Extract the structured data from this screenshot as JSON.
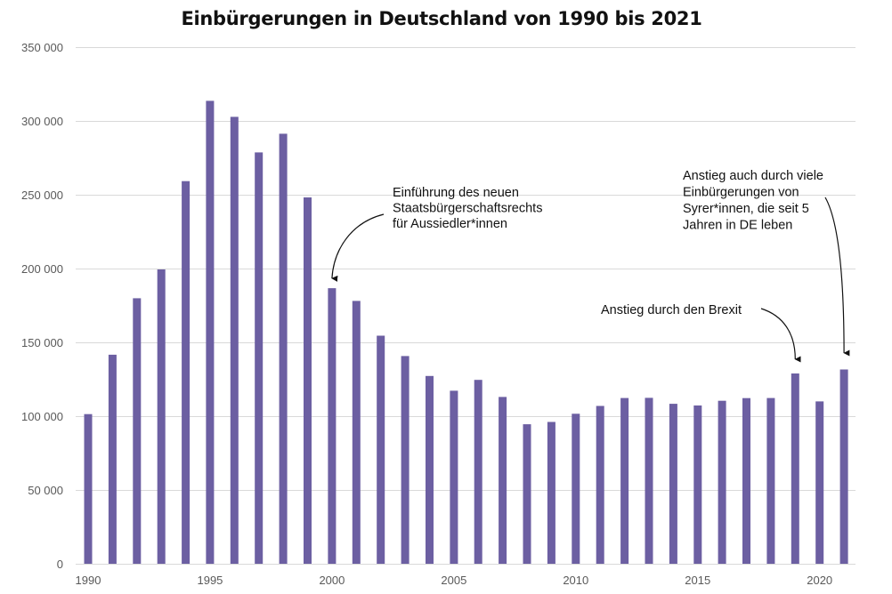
{
  "chart_data": {
    "type": "bar",
    "title": "Einbürgerungen in Deutschland von 1990 bis 2021",
    "xlabel": "",
    "ylabel": "",
    "ylim": [
      0,
      350000
    ],
    "grid": true,
    "legend": null,
    "bar_color": "#6c5fa2",
    "y_ticks": [
      0,
      50000,
      100000,
      150000,
      200000,
      250000,
      300000,
      350000
    ],
    "y_tick_labels": [
      "0",
      "50 000",
      "100 000",
      "150 000",
      "200 000",
      "250 000",
      "300 000",
      "350 000"
    ],
    "x_tick_labels": [
      "1990",
      "1995",
      "2000",
      "2005",
      "2010",
      "2015",
      "2020"
    ],
    "x_tick_years": [
      1990,
      1995,
      2000,
      2005,
      2010,
      2015,
      2020
    ],
    "categories": [
      1990,
      1991,
      1992,
      1993,
      1994,
      1995,
      1996,
      1997,
      1998,
      1999,
      2000,
      2001,
      2002,
      2003,
      2004,
      2005,
      2006,
      2007,
      2008,
      2009,
      2010,
      2011,
      2012,
      2013,
      2014,
      2015,
      2016,
      2017,
      2018,
      2019,
      2020,
      2021
    ],
    "values": [
      101400,
      141600,
      179900,
      199400,
      259200,
      313600,
      302800,
      278700,
      291300,
      248200,
      186700,
      178100,
      154500,
      140700,
      127200,
      117200,
      124600,
      113000,
      94500,
      96100,
      101600,
      106900,
      112300,
      112400,
      108400,
      107200,
      110400,
      112200,
      112300,
      128900,
      110000,
      131600
    ],
    "annotations": [
      {
        "id": "reform",
        "lines": [
          "Einführung des neuen",
          "Staatsbürgerschaftsrechts",
          "für Aussiedler*innen"
        ],
        "target_year": 2000
      },
      {
        "id": "brexit",
        "lines": [
          "Anstieg durch den Brexit"
        ],
        "target_year": 2019
      },
      {
        "id": "syria",
        "lines": [
          "Anstieg auch durch viele",
          "Einbürgerungen von",
          "Syrer*innen, die seit 5",
          "Jahren in DE leben"
        ],
        "target_year": 2021
      }
    ]
  }
}
